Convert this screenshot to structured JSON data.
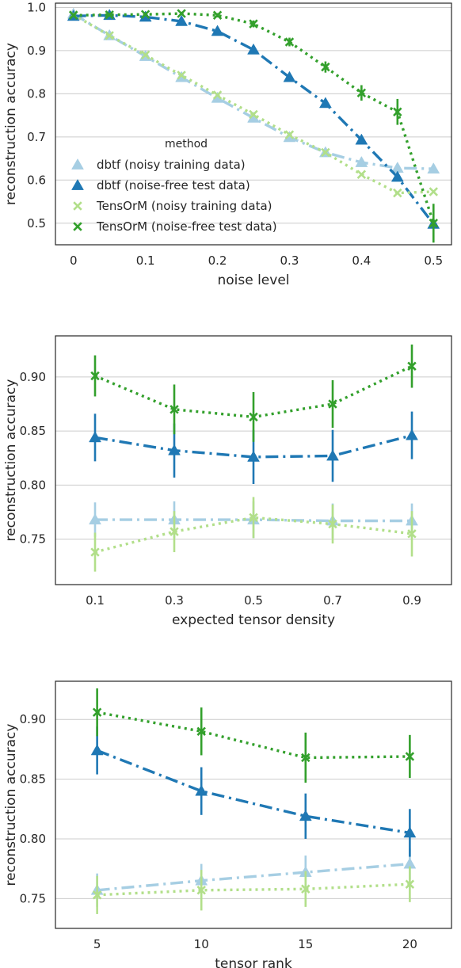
{
  "legend": {
    "title": "method",
    "placement": "center-left of first panel",
    "entries": [
      {
        "label": "dbtf (noisy training data)",
        "series": "dbtf_noisy"
      },
      {
        "label": "dbtf (noise-free test data)",
        "series": "dbtf_clean"
      },
      {
        "label": "TensOrM (noisy training data)",
        "series": "tensorm_noisy"
      },
      {
        "label": "TensOrM (noise-free test data)",
        "series": "tensorm_clean"
      }
    ]
  },
  "styles": {
    "dbtf_noisy": {
      "color": "#a6cee3",
      "marker": "triangle",
      "line": "dash-dot"
    },
    "dbtf_clean": {
      "color": "#1f78b4",
      "marker": "triangle",
      "line": "dash-dot"
    },
    "tensorm_noisy": {
      "color": "#b2df8a",
      "marker": "x",
      "line": "dotted"
    },
    "tensorm_clean": {
      "color": "#33a02c",
      "marker": "x",
      "line": "dotted"
    }
  },
  "chart_data": [
    {
      "type": "line",
      "xlabel": "noise level",
      "ylabel": "reconstruction accuracy",
      "grid": "horizontal",
      "xlim": [
        -0.025,
        0.525
      ],
      "ylim": [
        0.45,
        1.01
      ],
      "xticks": [
        0,
        0.1,
        0.2,
        0.3,
        0.4,
        0.5
      ],
      "xtick_labels": [
        "0",
        "0.1",
        "0.2",
        "0.3",
        "0.4",
        "0.5"
      ],
      "yticks": [
        0.5,
        0.6,
        0.7,
        0.8,
        0.9,
        1.0
      ],
      "ytick_labels": [
        "0.5",
        "0.6",
        "0.7",
        "0.8",
        "0.9",
        "1.0"
      ],
      "x": [
        0,
        0.05,
        0.1,
        0.15,
        0.2,
        0.25,
        0.3,
        0.35,
        0.4,
        0.45,
        0.5
      ],
      "series": [
        {
          "key": "dbtf_noisy",
          "values": [
            0.985,
            0.935,
            0.887,
            0.838,
            0.79,
            0.744,
            0.699,
            0.664,
            0.641,
            0.628,
            0.626
          ]
        },
        {
          "key": "dbtf_clean",
          "values": [
            0.98,
            0.982,
            0.978,
            0.968,
            0.945,
            0.902,
            0.838,
            0.778,
            0.693,
            0.607,
            0.498
          ]
        },
        {
          "key": "tensorm_noisy",
          "values": [
            0.983,
            0.935,
            0.89,
            0.843,
            0.797,
            0.752,
            0.705,
            0.664,
            0.613,
            0.57,
            0.573
          ]
        },
        {
          "key": "tensorm_clean",
          "values": [
            0.982,
            0.983,
            0.984,
            0.986,
            0.982,
            0.962,
            0.92,
            0.862,
            0.802,
            0.758,
            0.5
          ],
          "err": [
            0.004,
            0.004,
            0.004,
            0.004,
            0.005,
            0.008,
            0.01,
            0.013,
            0.018,
            0.03,
            0.045
          ]
        }
      ]
    },
    {
      "type": "line",
      "xlabel": "expected tensor density",
      "ylabel": "reconstruction accuracy",
      "grid": "horizontal",
      "xlim": [
        0.0,
        1.0
      ],
      "ylim": [
        0.708,
        0.938
      ],
      "xticks": [
        0.1,
        0.3,
        0.5,
        0.7,
        0.9
      ],
      "xtick_labels": [
        "0.1",
        "0.3",
        "0.5",
        "0.7",
        "0.9"
      ],
      "yticks": [
        0.75,
        0.8,
        0.85,
        0.9
      ],
      "ytick_labels": [
        "0.75",
        "0.80",
        "0.85",
        "0.90"
      ],
      "x": [
        0.1,
        0.3,
        0.5,
        0.7,
        0.9
      ],
      "series": [
        {
          "key": "dbtf_noisy",
          "values": [
            0.768,
            0.768,
            0.768,
            0.767,
            0.767
          ],
          "err": [
            0.016,
            0.017,
            0.017,
            0.016,
            0.016
          ]
        },
        {
          "key": "dbtf_clean",
          "values": [
            0.844,
            0.832,
            0.826,
            0.827,
            0.846
          ],
          "err": [
            0.022,
            0.025,
            0.025,
            0.024,
            0.022
          ]
        },
        {
          "key": "tensorm_noisy",
          "values": [
            0.738,
            0.757,
            0.77,
            0.764,
            0.755
          ],
          "err": [
            0.018,
            0.019,
            0.019,
            0.018,
            0.021
          ]
        },
        {
          "key": "tensorm_clean",
          "values": [
            0.901,
            0.87,
            0.863,
            0.875,
            0.91
          ],
          "err": [
            0.019,
            0.023,
            0.023,
            0.022,
            0.02
          ]
        }
      ]
    },
    {
      "type": "line",
      "xlabel": "tensor rank",
      "ylabel": "reconstruction accuracy",
      "grid": "horizontal",
      "xlim": [
        3,
        22
      ],
      "ylim": [
        0.725,
        0.932
      ],
      "xticks": [
        5,
        10,
        15,
        20
      ],
      "xtick_labels": [
        "5",
        "10",
        "15",
        "20"
      ],
      "yticks": [
        0.75,
        0.8,
        0.85,
        0.9
      ],
      "ytick_labels": [
        "0.75",
        "0.80",
        "0.85",
        "0.90"
      ],
      "x": [
        5,
        10,
        15,
        20
      ],
      "series": [
        {
          "key": "dbtf_noisy",
          "values": [
            0.757,
            0.765,
            0.772,
            0.779
          ],
          "err": [
            0.014,
            0.014,
            0.014,
            0.013
          ]
        },
        {
          "key": "dbtf_clean",
          "values": [
            0.874,
            0.84,
            0.819,
            0.805
          ],
          "err": [
            0.02,
            0.02,
            0.019,
            0.02
          ]
        },
        {
          "key": "tensorm_noisy",
          "values": [
            0.753,
            0.757,
            0.758,
            0.762
          ],
          "err": [
            0.016,
            0.017,
            0.015,
            0.015
          ]
        },
        {
          "key": "tensorm_clean",
          "values": [
            0.906,
            0.89,
            0.868,
            0.869
          ],
          "err": [
            0.02,
            0.02,
            0.021,
            0.018
          ]
        }
      ]
    }
  ]
}
